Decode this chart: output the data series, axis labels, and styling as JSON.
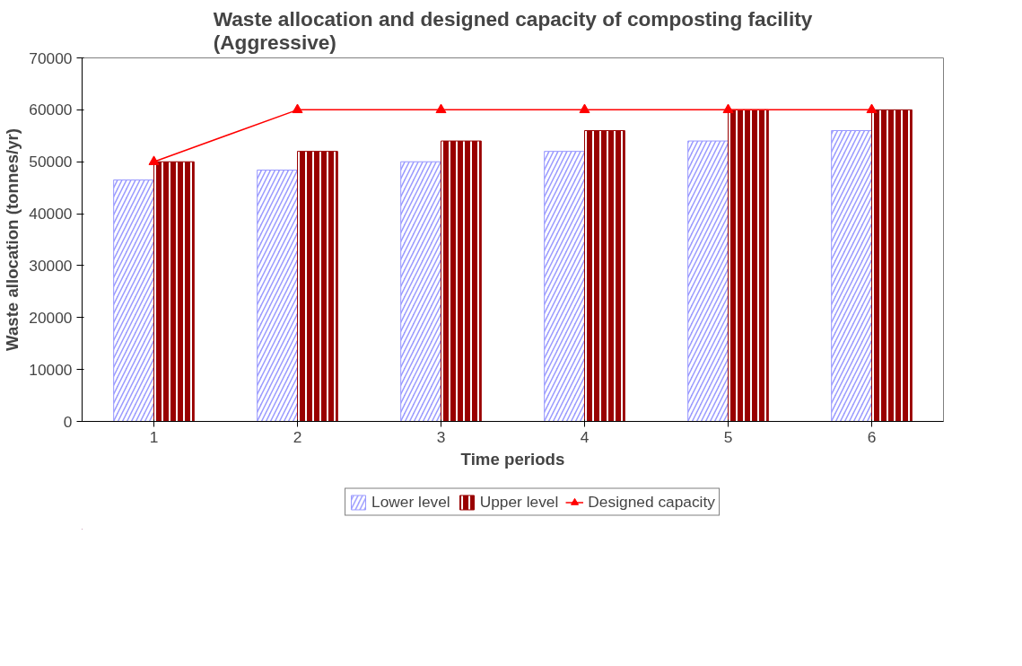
{
  "chart_data": {
    "type": "bar",
    "title": "Waste allocation and designed capacity of composting facility\n(Aggressive)",
    "xlabel": "Time periods",
    "ylabel": "Waste allocation (tonnes/yr)",
    "categories": [
      "1",
      "2",
      "3",
      "4",
      "5",
      "6"
    ],
    "series": [
      {
        "name": "Lower level",
        "color": "#9999ff",
        "values": [
          46500,
          48400,
          50000,
          52000,
          54000,
          56000
        ]
      },
      {
        "name": "Upper level",
        "color": "#990000",
        "values": [
          50000,
          52000,
          54000,
          56000,
          60000,
          60000
        ]
      },
      {
        "name": "Designed capacity",
        "type": "line",
        "color": "#ff0000",
        "marker": "triangle",
        "values": [
          50000,
          60000,
          60000,
          60000,
          60000,
          60000
        ]
      }
    ],
    "ylim": [
      0,
      70000
    ],
    "yticks": [
      0,
      10000,
      20000,
      30000,
      40000,
      50000,
      60000,
      70000
    ],
    "grid": false,
    "legend": "bottom"
  }
}
